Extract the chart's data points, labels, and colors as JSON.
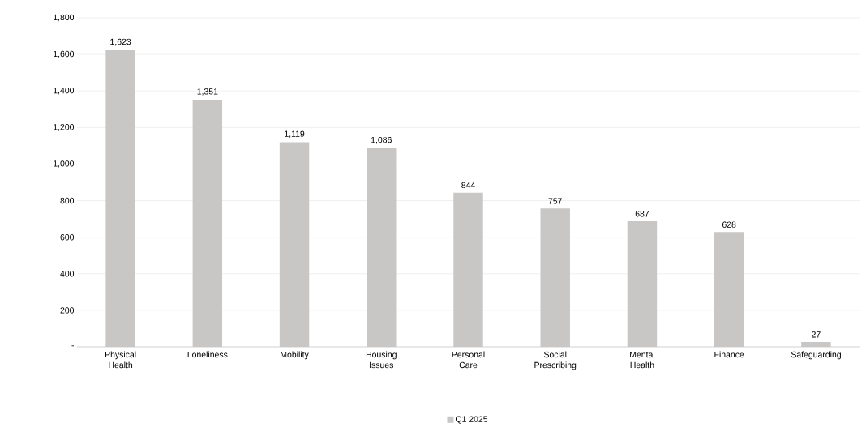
{
  "chart_data": {
    "type": "bar",
    "categories": [
      "Physical Health",
      "Loneliness",
      "Mobility",
      "Housing Issues",
      "Personal Care",
      "Social Prescribing",
      "Mental Health",
      "Finance",
      "Safeguarding"
    ],
    "series": [
      {
        "name": "Q1 2025",
        "color": "#c9c7c5",
        "values": [
          1623,
          1351,
          1119,
          1086,
          844,
          757,
          687,
          628,
          27
        ],
        "value_labels": [
          "1,623",
          "1,351",
          "1,119",
          "1,086",
          "844",
          "757",
          "687",
          "628",
          "27"
        ]
      }
    ],
    "ylim": [
      0,
      1800
    ],
    "yticks": [
      {
        "value": 0,
        "label": "-"
      },
      200,
      400,
      600,
      800,
      {
        "value": 1000,
        "label": "1,000"
      },
      {
        "value": 1200,
        "label": "1,200"
      },
      {
        "value": 1400,
        "label": "1,400"
      },
      {
        "value": 1600,
        "label": "1,600"
      },
      {
        "value": 1800,
        "label": "1,800"
      }
    ],
    "grid": "y",
    "legend": "bottom"
  }
}
